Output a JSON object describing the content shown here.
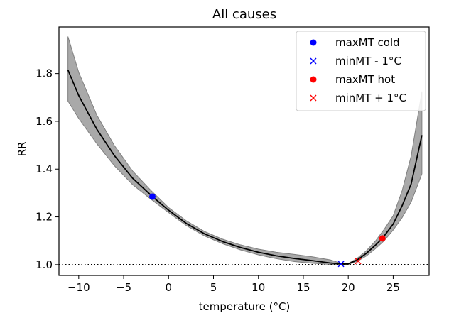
{
  "chart_data": {
    "type": "line",
    "title": "All causes",
    "xlabel": "temperature (°C)",
    "ylabel": "RR",
    "xlim": [
      -12.2,
      29
    ],
    "ylim": [
      0.955,
      1.995
    ],
    "xticks": [
      -10,
      -5,
      0,
      5,
      10,
      15,
      20,
      25
    ],
    "xtick_labels": [
      "−10",
      "−5",
      "0",
      "5",
      "10",
      "15",
      "20",
      "25"
    ],
    "yticks": [
      1.0,
      1.2,
      1.4,
      1.6,
      1.8
    ],
    "ytick_labels": [
      "1.0",
      "1.2",
      "1.4",
      "1.6",
      "1.8"
    ],
    "reference_line": {
      "y": 1.0,
      "style": "dotted",
      "color": "#000000"
    },
    "series": [
      {
        "kind": "curve",
        "color": "#000000",
        "x": [
          -11.2,
          -10,
          -8,
          -6,
          -4,
          -2,
          -1.8,
          0,
          2,
          4,
          6,
          8,
          10,
          12,
          14,
          16,
          18,
          19.2,
          20,
          21,
          22,
          23,
          23.8,
          25,
          26,
          27,
          28.2
        ],
        "y": [
          1.815,
          1.708,
          1.568,
          1.455,
          1.362,
          1.292,
          1.285,
          1.228,
          1.172,
          1.129,
          1.097,
          1.072,
          1.052,
          1.037,
          1.026,
          1.017,
          1.007,
          1.003,
          1.003,
          1.02,
          1.047,
          1.081,
          1.11,
          1.17,
          1.247,
          1.338,
          1.542
        ]
      },
      {
        "kind": "confidence_band",
        "color": "#a9a9a9",
        "x": [
          -11.2,
          -10,
          -8,
          -6,
          -4,
          -2,
          0,
          2,
          4,
          6,
          8,
          10,
          12,
          14,
          16,
          18,
          19.2,
          20,
          21,
          22,
          23,
          24,
          25,
          26,
          27,
          28.2
        ],
        "lower": [
          1.685,
          1.612,
          1.507,
          1.413,
          1.335,
          1.275,
          1.218,
          1.163,
          1.12,
          1.088,
          1.062,
          1.041,
          1.025,
          1.013,
          1.006,
          1.001,
          1.001,
          1.001,
          1.014,
          1.036,
          1.066,
          1.1,
          1.145,
          1.197,
          1.262,
          1.38
        ],
        "upper": [
          1.955,
          1.805,
          1.627,
          1.497,
          1.392,
          1.312,
          1.239,
          1.183,
          1.139,
          1.107,
          1.083,
          1.065,
          1.052,
          1.043,
          1.033,
          1.02,
          1.006,
          1.005,
          1.027,
          1.058,
          1.098,
          1.148,
          1.205,
          1.31,
          1.455,
          1.725
        ]
      }
    ],
    "markers": [
      {
        "name": "maxMT cold",
        "x": -1.8,
        "y": 1.285,
        "marker": "circle",
        "color": "#0000ff"
      },
      {
        "name": "minMT - 1°C",
        "x": 19.2,
        "y": 1.003,
        "marker": "x",
        "color": "#0000ff"
      },
      {
        "name": "maxMT hot",
        "x": 23.8,
        "y": 1.11,
        "marker": "circle",
        "color": "#ff0000"
      },
      {
        "name": "minMT + 1°C",
        "x": 21.1,
        "y": 1.015,
        "marker": "x",
        "color": "#ff0000"
      }
    ],
    "legend": {
      "placement": "top-right",
      "entries": [
        {
          "label": "maxMT cold",
          "marker": "circle",
          "color": "#0000ff"
        },
        {
          "label": "minMT - 1°C",
          "marker": "x",
          "color": "#0000ff"
        },
        {
          "label": "maxMT hot",
          "marker": "circle",
          "color": "#ff0000"
        },
        {
          "label": "minMT + 1°C",
          "marker": "x",
          "color": "#ff0000"
        }
      ]
    },
    "grid": false
  }
}
